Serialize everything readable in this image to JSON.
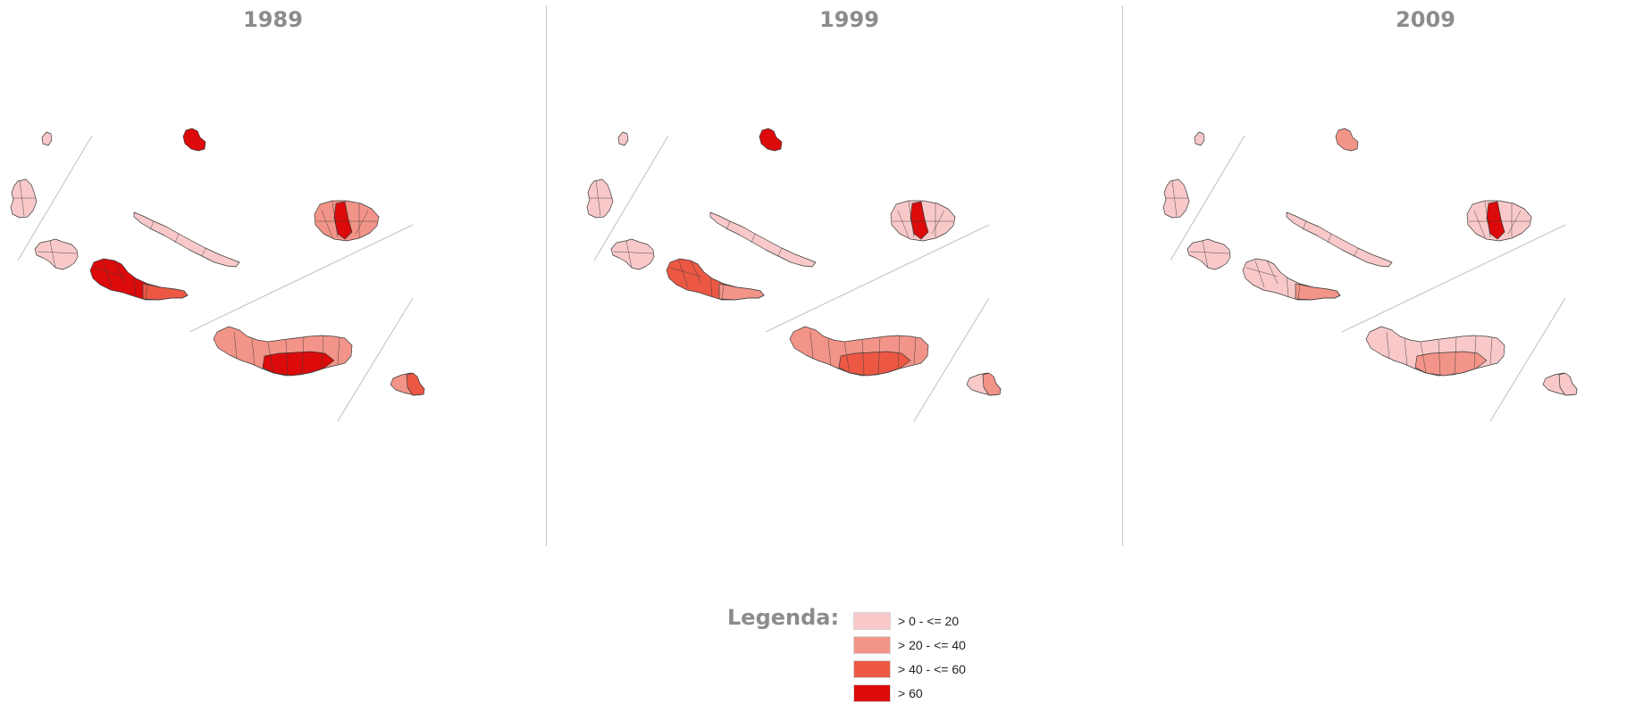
{
  "colors": {
    "class_1": "#f9c9c9",
    "class_2": "#f39488",
    "class_3": "#ec5844",
    "class_4": "#dc0a0a",
    "title_gray": "#8c8c8c",
    "divider": "#c8c8c8"
  },
  "panels": [
    {
      "title": "1989",
      "islands": {
        "corvo": "class_1",
        "flores": "class_1",
        "graciosa": "class_4",
        "faial": "class_1",
        "pico": "class_4",
        "pico_east": "class_3",
        "sao_jorge": "class_1",
        "terceira": "class_2",
        "terceira_core": "class_4",
        "sao_miguel": "class_2",
        "sao_miguel_south": "class_4",
        "santa_maria": "class_2",
        "santa_maria_east": "class_3"
      }
    },
    {
      "title": "1999",
      "islands": {
        "corvo": "class_1",
        "flores": "class_1",
        "graciosa": "class_4",
        "faial": "class_1",
        "pico": "class_3",
        "pico_east": "class_2",
        "sao_jorge": "class_1",
        "terceira": "class_1",
        "terceira_core": "class_4",
        "sao_miguel": "class_2",
        "sao_miguel_south": "class_3",
        "santa_maria": "class_1",
        "santa_maria_east": "class_2"
      }
    },
    {
      "title": "2009",
      "islands": {
        "corvo": "class_1",
        "flores": "class_1",
        "graciosa": "class_2",
        "faial": "class_1",
        "pico": "class_1",
        "pico_east": "class_2",
        "sao_jorge": "class_1",
        "terceira": "class_1",
        "terceira_core": "class_4",
        "sao_miguel": "class_1",
        "sao_miguel_south": "class_2",
        "santa_maria": "class_1",
        "santa_maria_east": "class_1"
      }
    }
  ],
  "legend": {
    "title": "Legenda:",
    "items": [
      {
        "label": "> 0 - <= 20",
        "color": "#f9c9c9"
      },
      {
        "label": "> 20 - <= 40",
        "color": "#f39488"
      },
      {
        "label": "> 40 - <= 60",
        "color": "#ec5844"
      },
      {
        "label": "> 60",
        "color": "#dc0a0a"
      }
    ]
  }
}
